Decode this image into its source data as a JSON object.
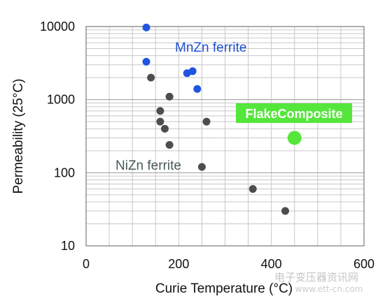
{
  "chart_data": {
    "type": "scatter",
    "title": "",
    "xlabel": "Curie Temperature (°C)",
    "ylabel": "Permeability (25°C)",
    "xlim": [
      0,
      600
    ],
    "ylim": [
      10,
      10000
    ],
    "yscale": "log",
    "xticks": [
      0,
      200,
      400,
      600
    ],
    "xtick_labels": [
      "0",
      "200",
      "400",
      "600"
    ],
    "yticks": [
      10,
      100,
      1000,
      10000
    ],
    "ytick_labels": [
      "10",
      "100",
      "1000",
      "10000"
    ],
    "grid": "horizontal minor and major lines, vertical lines every 50 °C",
    "series": [
      {
        "name": "MnZn ferrite",
        "color": "#1f55e0",
        "points": [
          {
            "x": 130,
            "y": 9700
          },
          {
            "x": 130,
            "y": 3300
          },
          {
            "x": 218,
            "y": 2300
          },
          {
            "x": 230,
            "y": 2450
          },
          {
            "x": 240,
            "y": 1400
          }
        ]
      },
      {
        "name": "NiZn ferrite",
        "color": "#4d4d4d",
        "points": [
          {
            "x": 140,
            "y": 2000
          },
          {
            "x": 180,
            "y": 1100
          },
          {
            "x": 160,
            "y": 700
          },
          {
            "x": 160,
            "y": 500
          },
          {
            "x": 170,
            "y": 400
          },
          {
            "x": 180,
            "y": 240
          },
          {
            "x": 260,
            "y": 500
          },
          {
            "x": 250,
            "y": 120
          },
          {
            "x": 360,
            "y": 60
          },
          {
            "x": 430,
            "y": 30
          }
        ]
      },
      {
        "name": "FlakeComposite",
        "color": "#55e63c",
        "points": [
          {
            "x": 450,
            "y": 300
          }
        ]
      }
    ],
    "annotations": {
      "mnzn_label": "MnZn ferrite",
      "nizn_label": "NiZn ferrite",
      "flake_label": "FlakeComposite"
    }
  },
  "watermark": {
    "text": "电子变压器资讯网",
    "url": "www.ett-cn.com"
  }
}
